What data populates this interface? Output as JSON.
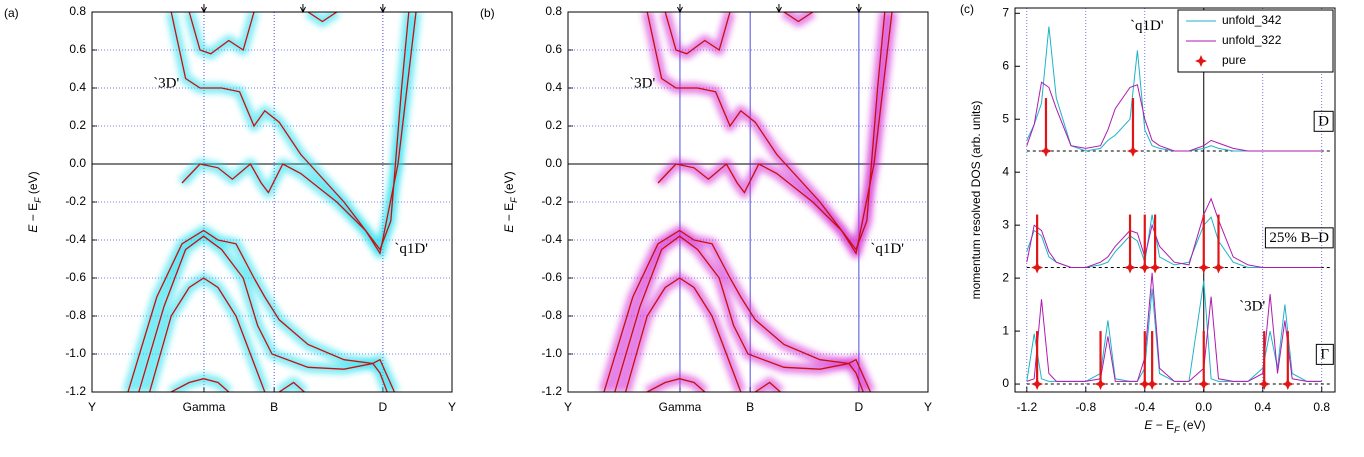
{
  "chart_data": [
    {
      "type": "band",
      "panel_label": "(a)",
      "glow_color": "#22dfee",
      "line_color": "#c80f0f",
      "kline_style": "dotted",
      "grid": true,
      "zero_line": true,
      "ylabel": [
        "E",
        " − E",
        "F",
        " (eV)"
      ],
      "xlim": [
        0,
        1
      ],
      "xticks": [
        {
          "value": 0,
          "label": "Y"
        },
        {
          "value": 0.311,
          "label": "Gamma"
        },
        {
          "value": 0.506,
          "label": "B"
        },
        {
          "value": 0.808,
          "label": "D"
        },
        {
          "value": 1,
          "label": "Y"
        }
      ],
      "top_markers": [
        0.311,
        0.586,
        0.808
      ],
      "ylim": [
        -1.2,
        0.8
      ],
      "yticks": [
        -1.2,
        {
          "value": -1,
          "label": "-1.0"
        },
        -0.8,
        -0.6,
        -0.4,
        -0.2,
        {
          "value": 0,
          "label": "0.0"
        },
        0.2,
        0.4,
        0.6,
        0.8
      ],
      "annotations": [
        "`3D'",
        "`q1D'"
      ],
      "bands": [
        {
          "x": [
            0.27,
            0.3,
            0.33,
            0.38,
            0.42,
            0.45
          ],
          "values": [
            0.8,
            0.6,
            0.58,
            0.65,
            0.6,
            0.8
          ]
        },
        {
          "x": [
            0.6,
            0.64,
            0.68
          ],
          "values": [
            0.8,
            0.75,
            0.8
          ]
        },
        {
          "x": [
            0.22,
            0.26,
            0.3,
            0.36,
            0.41,
            0.45,
            0.48,
            0.52,
            0.58,
            0.7,
            0.8,
            0.83,
            0.86,
            0.88
          ],
          "values": [
            0.8,
            0.45,
            0.4,
            0.4,
            0.38,
            0.2,
            0.28,
            0.22,
            0.05,
            -0.2,
            -0.45,
            -0.3,
            0.4,
            0.8
          ]
        },
        {
          "x": [
            0.25,
            0.3,
            0.35,
            0.39,
            0.44,
            0.47,
            0.49,
            0.53,
            0.58,
            0.68,
            0.76,
            0.8,
            0.85,
            0.9
          ],
          "values": [
            -0.1,
            0,
            -0.02,
            -0.08,
            0,
            -0.1,
            -0.15,
            0,
            -0.05,
            -0.2,
            -0.35,
            -0.47,
            0,
            0.8
          ]
        },
        {
          "x": [
            0.1,
            0.18,
            0.25,
            0.31,
            0.35,
            0.4,
            0.45,
            0.48,
            0.52,
            0.6,
            0.7,
            0.78,
            0.8,
            0.84
          ],
          "values": [
            -1.2,
            -0.7,
            -0.42,
            -0.35,
            -0.4,
            -0.42,
            -0.6,
            -0.7,
            -0.82,
            -0.95,
            -1.03,
            -1.05,
            -1.03,
            -1.2
          ]
        },
        {
          "x": [
            0.13,
            0.2,
            0.26,
            0.31,
            0.36,
            0.42,
            0.46,
            0.5,
            0.6,
            0.7,
            0.78,
            0.8,
            0.82
          ],
          "values": [
            -1.2,
            -0.75,
            -0.45,
            -0.38,
            -0.45,
            -0.6,
            -0.85,
            -1.0,
            -1.07,
            -1.08,
            -1.05,
            -1.1,
            -1.2
          ]
        },
        {
          "x": [
            0.16,
            0.22,
            0.27,
            0.31,
            0.35,
            0.4,
            0.44,
            0.48
          ],
          "values": [
            -1.2,
            -0.8,
            -0.65,
            -0.6,
            -0.65,
            -0.8,
            -1.0,
            -1.2
          ]
        },
        {
          "x": [
            0.22,
            0.27,
            0.31,
            0.35,
            0.38
          ],
          "values": [
            -1.2,
            -1.15,
            -1.13,
            -1.15,
            -1.2
          ]
        },
        {
          "x": [
            0.52,
            0.56,
            0.59
          ],
          "values": [
            -1.2,
            -1.15,
            -1.2
          ]
        }
      ]
    },
    {
      "type": "band",
      "panel_label": "(b)",
      "glow_color": "#d42ad4",
      "line_color": "#c80f0f",
      "kline_style": "solid",
      "grid": true,
      "zero_line": true,
      "ylabel": [
        "E",
        " − E",
        "F",
        " (eV)"
      ],
      "xlim": [
        0,
        1
      ],
      "xticks": [
        {
          "value": 0,
          "label": "Y"
        },
        {
          "value": 0.311,
          "label": "Gamma"
        },
        {
          "value": 0.506,
          "label": "B"
        },
        {
          "value": 0.808,
          "label": "D"
        },
        {
          "value": 1,
          "label": "Y"
        }
      ],
      "top_markers": [
        0.311,
        0.586,
        0.808
      ],
      "ylim": [
        -1.2,
        0.8
      ],
      "yticks": [
        -1.2,
        {
          "value": -1,
          "label": "-1.0"
        },
        -0.8,
        -0.6,
        -0.4,
        -0.2,
        {
          "value": 0,
          "label": "0.0"
        },
        0.2,
        0.4,
        0.6,
        0.8
      ],
      "annotations": [
        "`3D'",
        "`q1D'"
      ],
      "bands": [
        {
          "x": [
            0.27,
            0.3,
            0.33,
            0.38,
            0.42,
            0.45
          ],
          "values": [
            0.8,
            0.6,
            0.58,
            0.65,
            0.6,
            0.8
          ]
        },
        {
          "x": [
            0.6,
            0.64,
            0.68
          ],
          "values": [
            0.8,
            0.75,
            0.8
          ]
        },
        {
          "x": [
            0.22,
            0.26,
            0.3,
            0.36,
            0.41,
            0.45,
            0.48,
            0.52,
            0.58,
            0.7,
            0.8,
            0.83,
            0.86,
            0.88
          ],
          "values": [
            0.8,
            0.45,
            0.4,
            0.4,
            0.38,
            0.2,
            0.28,
            0.22,
            0.05,
            -0.2,
            -0.45,
            -0.3,
            0.4,
            0.8
          ]
        },
        {
          "x": [
            0.25,
            0.3,
            0.35,
            0.39,
            0.44,
            0.47,
            0.49,
            0.53,
            0.58,
            0.68,
            0.76,
            0.8,
            0.85,
            0.9
          ],
          "values": [
            -0.1,
            0,
            -0.02,
            -0.08,
            0,
            -0.1,
            -0.15,
            0,
            -0.05,
            -0.2,
            -0.35,
            -0.47,
            0,
            0.8
          ]
        },
        {
          "x": [
            0.1,
            0.18,
            0.25,
            0.31,
            0.35,
            0.4,
            0.45,
            0.48,
            0.52,
            0.6,
            0.7,
            0.78,
            0.8,
            0.84
          ],
          "values": [
            -1.2,
            -0.7,
            -0.42,
            -0.35,
            -0.4,
            -0.42,
            -0.6,
            -0.7,
            -0.82,
            -0.95,
            -1.03,
            -1.05,
            -1.03,
            -1.2
          ]
        },
        {
          "x": [
            0.13,
            0.2,
            0.26,
            0.31,
            0.36,
            0.42,
            0.46,
            0.5,
            0.6,
            0.7,
            0.78,
            0.8,
            0.82
          ],
          "values": [
            -1.2,
            -0.75,
            -0.45,
            -0.38,
            -0.45,
            -0.6,
            -0.85,
            -1.0,
            -1.07,
            -1.08,
            -1.05,
            -1.1,
            -1.2
          ]
        },
        {
          "x": [
            0.16,
            0.22,
            0.27,
            0.31,
            0.35,
            0.4,
            0.44,
            0.48
          ],
          "values": [
            -1.2,
            -0.8,
            -0.65,
            -0.6,
            -0.65,
            -0.8,
            -1.0,
            -1.2
          ]
        },
        {
          "x": [
            0.22,
            0.27,
            0.31,
            0.35,
            0.38
          ],
          "values": [
            -1.2,
            -1.15,
            -1.13,
            -1.15,
            -1.2
          ]
        },
        {
          "x": [
            0.52,
            0.56,
            0.59
          ],
          "values": [
            -1.2,
            -1.15,
            -1.2
          ]
        }
      ]
    },
    {
      "type": "line",
      "panel_label": "(c)",
      "grid": true,
      "zero_line": true,
      "xlabel": [
        "E",
        " − E",
        "F",
        " (eV)"
      ],
      "ylabel": "momentum resolved DOS (arb. units)",
      "xlim": [
        -1.28,
        0.89
      ],
      "xticks": [
        -1.2,
        -0.8,
        -0.4,
        {
          "value": 0,
          "label": "0.0"
        },
        0.4,
        0.8
      ],
      "ylim": [
        -0.15,
        7.1
      ],
      "yticks": [
        0,
        1,
        2,
        3,
        4,
        5,
        6,
        7
      ],
      "offsets": [
        0,
        2.2,
        4.4
      ],
      "group_labels": [
        "Γ",
        "25% B–D",
        "D"
      ],
      "annotations": [
        "`q1D'",
        "`3D'"
      ],
      "x": [
        -1.2,
        -1.15,
        -1.1,
        -1.05,
        -1.0,
        -0.9,
        -0.8,
        -0.7,
        -0.65,
        -0.6,
        -0.5,
        -0.45,
        -0.4,
        -0.35,
        -0.3,
        -0.2,
        -0.1,
        0,
        0.05,
        0.1,
        0.2,
        0.3,
        0.4,
        0.45,
        0.5,
        0.55,
        0.6,
        0.7,
        0.8
      ],
      "series": [
        {
          "name": "unfold_342",
          "color": "#1fb3c8",
          "values": [
            [
              0.05,
              0.95,
              0.1,
              0.05,
              0.05,
              0.05,
              0.05,
              0.2,
              1.2,
              0.1,
              0.05,
              0.05,
              0.3,
              1.8,
              0.2,
              0.05,
              0.05,
              1.95,
              0.1,
              0.05,
              0.05,
              0.05,
              0.3,
              1.0,
              0.3,
              1.5,
              0.2,
              0.05,
              0.05
            ],
            [
              2.5,
              2.9,
              2.8,
              2.4,
              2.3,
              2.2,
              2.2,
              2.25,
              2.3,
              2.5,
              2.8,
              2.7,
              2.3,
              3.2,
              2.4,
              2.25,
              2.3,
              3.0,
              3.15,
              2.7,
              2.3,
              2.2,
              2.2,
              2.2,
              2.2,
              2.2,
              2.2,
              2.2,
              2.2
            ],
            [
              4.6,
              4.9,
              5.3,
              6.75,
              5.4,
              4.5,
              4.4,
              4.45,
              4.6,
              4.7,
              5.0,
              6.3,
              4.8,
              4.5,
              4.45,
              4.4,
              4.4,
              4.45,
              4.5,
              4.45,
              4.4,
              4.4,
              4.4,
              4.4,
              4.4,
              4.4,
              4.4,
              4.4,
              4.4
            ]
          ]
        },
        {
          "name": "unfold_322",
          "color": "#b01ab0",
          "values": [
            [
              0.05,
              0.1,
              1.6,
              0.2,
              0.05,
              0.05,
              0.05,
              0.1,
              0.9,
              0.05,
              0.05,
              0.05,
              0.5,
              2.1,
              0.3,
              0.05,
              0.05,
              0.3,
              1.65,
              0.1,
              0.05,
              0.05,
              0.2,
              1.7,
              0.2,
              1.2,
              0.1,
              0.05,
              0.05
            ],
            [
              2.3,
              3.0,
              2.9,
              2.5,
              2.3,
              2.2,
              2.2,
              2.3,
              2.4,
              2.6,
              2.9,
              2.85,
              2.4,
              3.0,
              2.6,
              2.3,
              2.25,
              3.2,
              3.5,
              3.1,
              2.4,
              2.25,
              2.2,
              2.2,
              2.2,
              2.2,
              2.2,
              2.2,
              2.2
            ],
            [
              4.5,
              4.9,
              5.7,
              5.6,
              5.2,
              4.5,
              4.45,
              4.5,
              4.8,
              5.2,
              5.6,
              5.65,
              5.0,
              4.6,
              4.5,
              4.4,
              4.4,
              4.5,
              4.6,
              4.55,
              4.45,
              4.4,
              4.4,
              4.4,
              4.4,
              4.4,
              4.4,
              4.4,
              4.4
            ]
          ]
        }
      ],
      "pure": {
        "name": "pure",
        "color": "#e01515",
        "x": [
          [
            -1.13,
            -0.7,
            -0.4,
            -0.35,
            0,
            0.41,
            0.57
          ],
          [
            -1.13,
            -0.5,
            -0.4,
            -0.33,
            0,
            0.1
          ],
          [
            -1.07,
            -0.48
          ]
        ],
        "values": [
          [
            1.0,
            1.0,
            1.0,
            1.0,
            1.0,
            1.0,
            1.0
          ],
          [
            3.2,
            3.2,
            3.2,
            3.2,
            3.2,
            3.2
          ],
          [
            5.4,
            5.4
          ]
        ]
      }
    }
  ]
}
